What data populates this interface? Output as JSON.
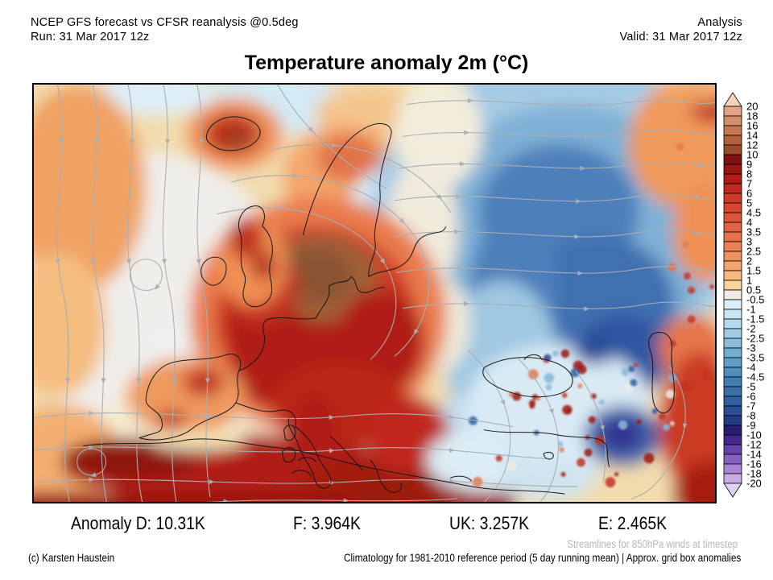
{
  "header": {
    "model_line": "NCEP GFS forecast vs CFSR reanalysis @0.5deg",
    "run_line": "Run: 31 Mar 2017 12z",
    "mode_line": "Analysis",
    "valid_line": "Valid: 31 Mar 2017 12z"
  },
  "title": "Temperature anomaly 2m (°C)",
  "colorbar": {
    "labels": [
      "20",
      "18",
      "16",
      "14",
      "12",
      "10",
      "9",
      "8",
      "7",
      "6",
      "5",
      "4.5",
      "4",
      "3.5",
      "3",
      "2.5",
      "2",
      "1.5",
      "1",
      "0.5",
      "-0.5",
      "-1",
      "-1.5",
      "-2",
      "-2.5",
      "-3",
      "-3.5",
      "-4",
      "-4.5",
      "-5",
      "-6",
      "-7",
      "-8",
      "-9",
      "-10",
      "-12",
      "-14",
      "-16",
      "-18",
      "-20"
    ],
    "cell_colors": [
      "#e2a387",
      "#d38f6b",
      "#c67a52",
      "#b2613d",
      "#9d4c2b",
      "#801110",
      "#971712",
      "#b01b15",
      "#c22920",
      "#cf382a",
      "#d84733",
      "#de543b",
      "#e36243",
      "#e8714c",
      "#ec8156",
      "#f09260",
      "#f4a56d",
      "#f7bb80",
      "#f8d49a",
      "#f0ebe0",
      "#dceff8",
      "#c9e6f3",
      "#b4daed",
      "#9ecde5",
      "#88bedb",
      "#72aed2",
      "#619ec8",
      "#518ebe",
      "#437eb3",
      "#396ea9",
      "#315e9f",
      "#2b4d93",
      "#263a85",
      "#2a1d6e",
      "#46288c",
      "#6741ab",
      "#8760c0",
      "#a886d2",
      "#c7aee3"
    ],
    "above_color": "#f8d2ba",
    "below_color": "#ded2f0",
    "outline_color": "#000000"
  },
  "stats": [
    "Anomaly D: 10.31K",
    "F: 3.964K",
    "UK: 3.257K",
    "E: 2.465K"
  ],
  "footer": {
    "streamline_note": "Streamlines for 850hPa winds at timestep",
    "credit": "(c) Karsten Haustein",
    "climatology_note": "Climatology for 1981-2010 reference period (5 day running mean) | Approx. grid box anomalies"
  }
}
